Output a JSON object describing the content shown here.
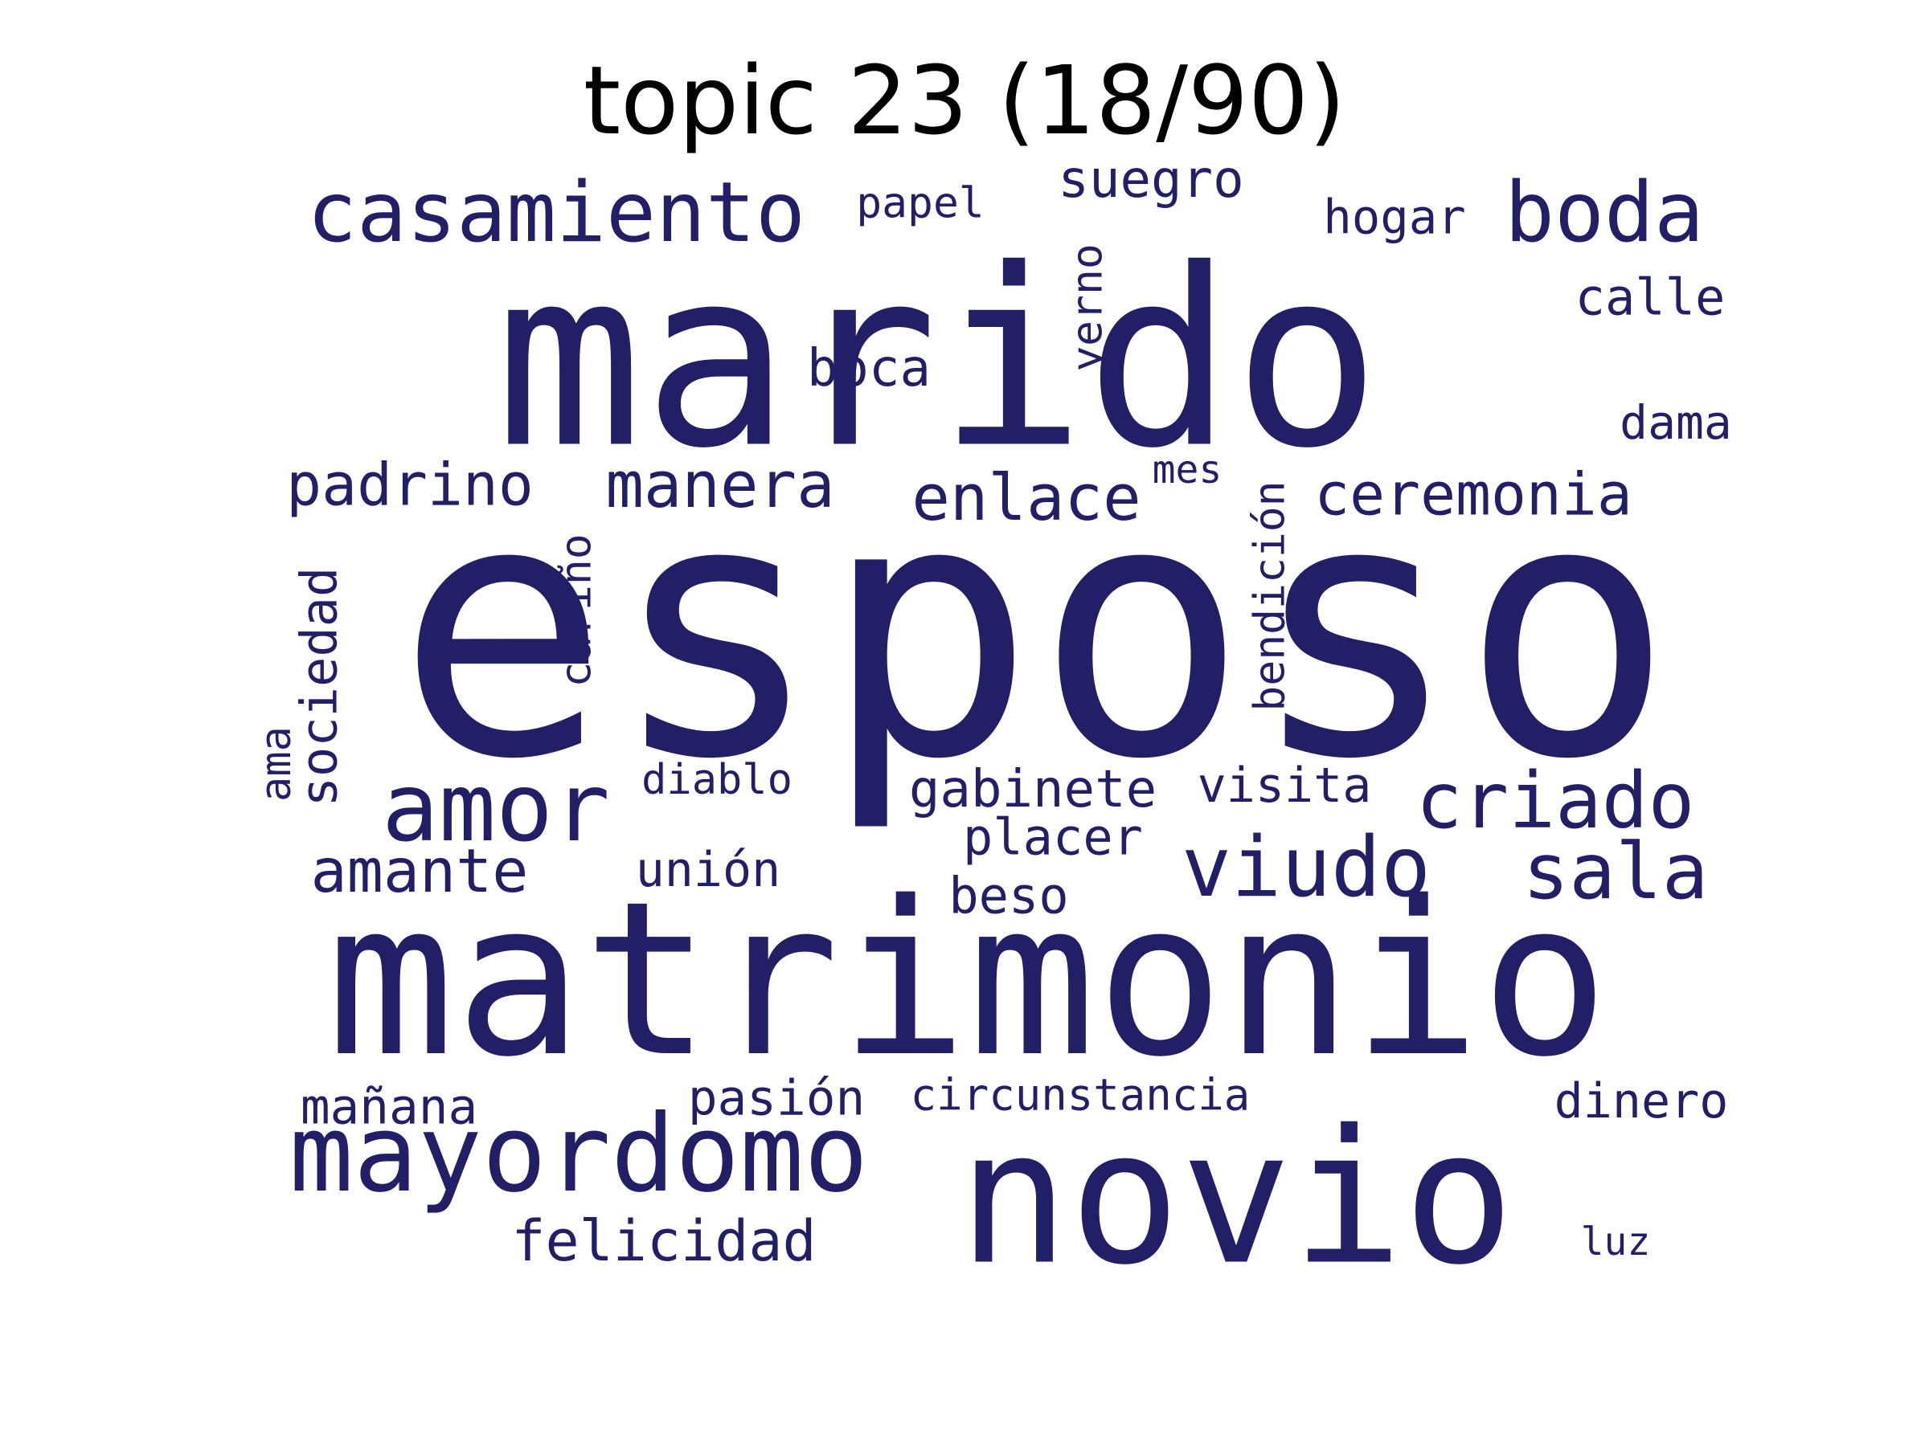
{
  "title": "topic 23 (18/90)",
  "colors": {
    "background": "#ffffff",
    "title": "#000000",
    "words": "#221f66"
  },
  "words": [
    {
      "text": "esposo",
      "rank": 1
    },
    {
      "text": "marido",
      "rank": 2
    },
    {
      "text": "matrimonio",
      "rank": 3
    },
    {
      "text": "novio",
      "rank": 4
    },
    {
      "text": "mayordomo",
      "rank": 5
    },
    {
      "text": "casamiento",
      "rank": 6
    },
    {
      "text": "amor",
      "rank": 7
    },
    {
      "text": "boda",
      "rank": 8
    },
    {
      "text": "viudo",
      "rank": 9
    },
    {
      "text": "criado",
      "rank": 10
    },
    {
      "text": "sala",
      "rank": 11
    },
    {
      "text": "enlace",
      "rank": 12
    },
    {
      "text": "manera",
      "rank": 13
    },
    {
      "text": "ceremonia",
      "rank": 14
    },
    {
      "text": "padrino",
      "rank": 15
    },
    {
      "text": "amante",
      "rank": 16
    },
    {
      "text": "suegro",
      "rank": 17
    },
    {
      "text": "felicidad",
      "rank": 18
    },
    {
      "text": "calle",
      "rank": 19
    },
    {
      "text": "boca",
      "rank": 20
    },
    {
      "text": "gabinete",
      "rank": 21
    },
    {
      "text": "placer",
      "rank": 22
    },
    {
      "text": "sociedad",
      "rank": 23
    },
    {
      "text": "hogar",
      "rank": 24
    },
    {
      "text": "beso",
      "rank": 25
    },
    {
      "text": "visita",
      "rank": 26
    },
    {
      "text": "mañana",
      "rank": 27
    },
    {
      "text": "pasión",
      "rank": 28
    },
    {
      "text": "unión",
      "rank": 29
    },
    {
      "text": "dinero",
      "rank": 30
    },
    {
      "text": "bendición",
      "rank": 31
    },
    {
      "text": "dama",
      "rank": 32
    },
    {
      "text": "cariño",
      "rank": 33
    },
    {
      "text": "yerno",
      "rank": 34
    },
    {
      "text": "circunstancia",
      "rank": 35
    },
    {
      "text": "papel",
      "rank": 36
    },
    {
      "text": "diablo",
      "rank": 37
    },
    {
      "text": "ama",
      "rank": 38
    },
    {
      "text": "mes",
      "rank": 39
    },
    {
      "text": "luz",
      "rank": 40
    }
  ]
}
